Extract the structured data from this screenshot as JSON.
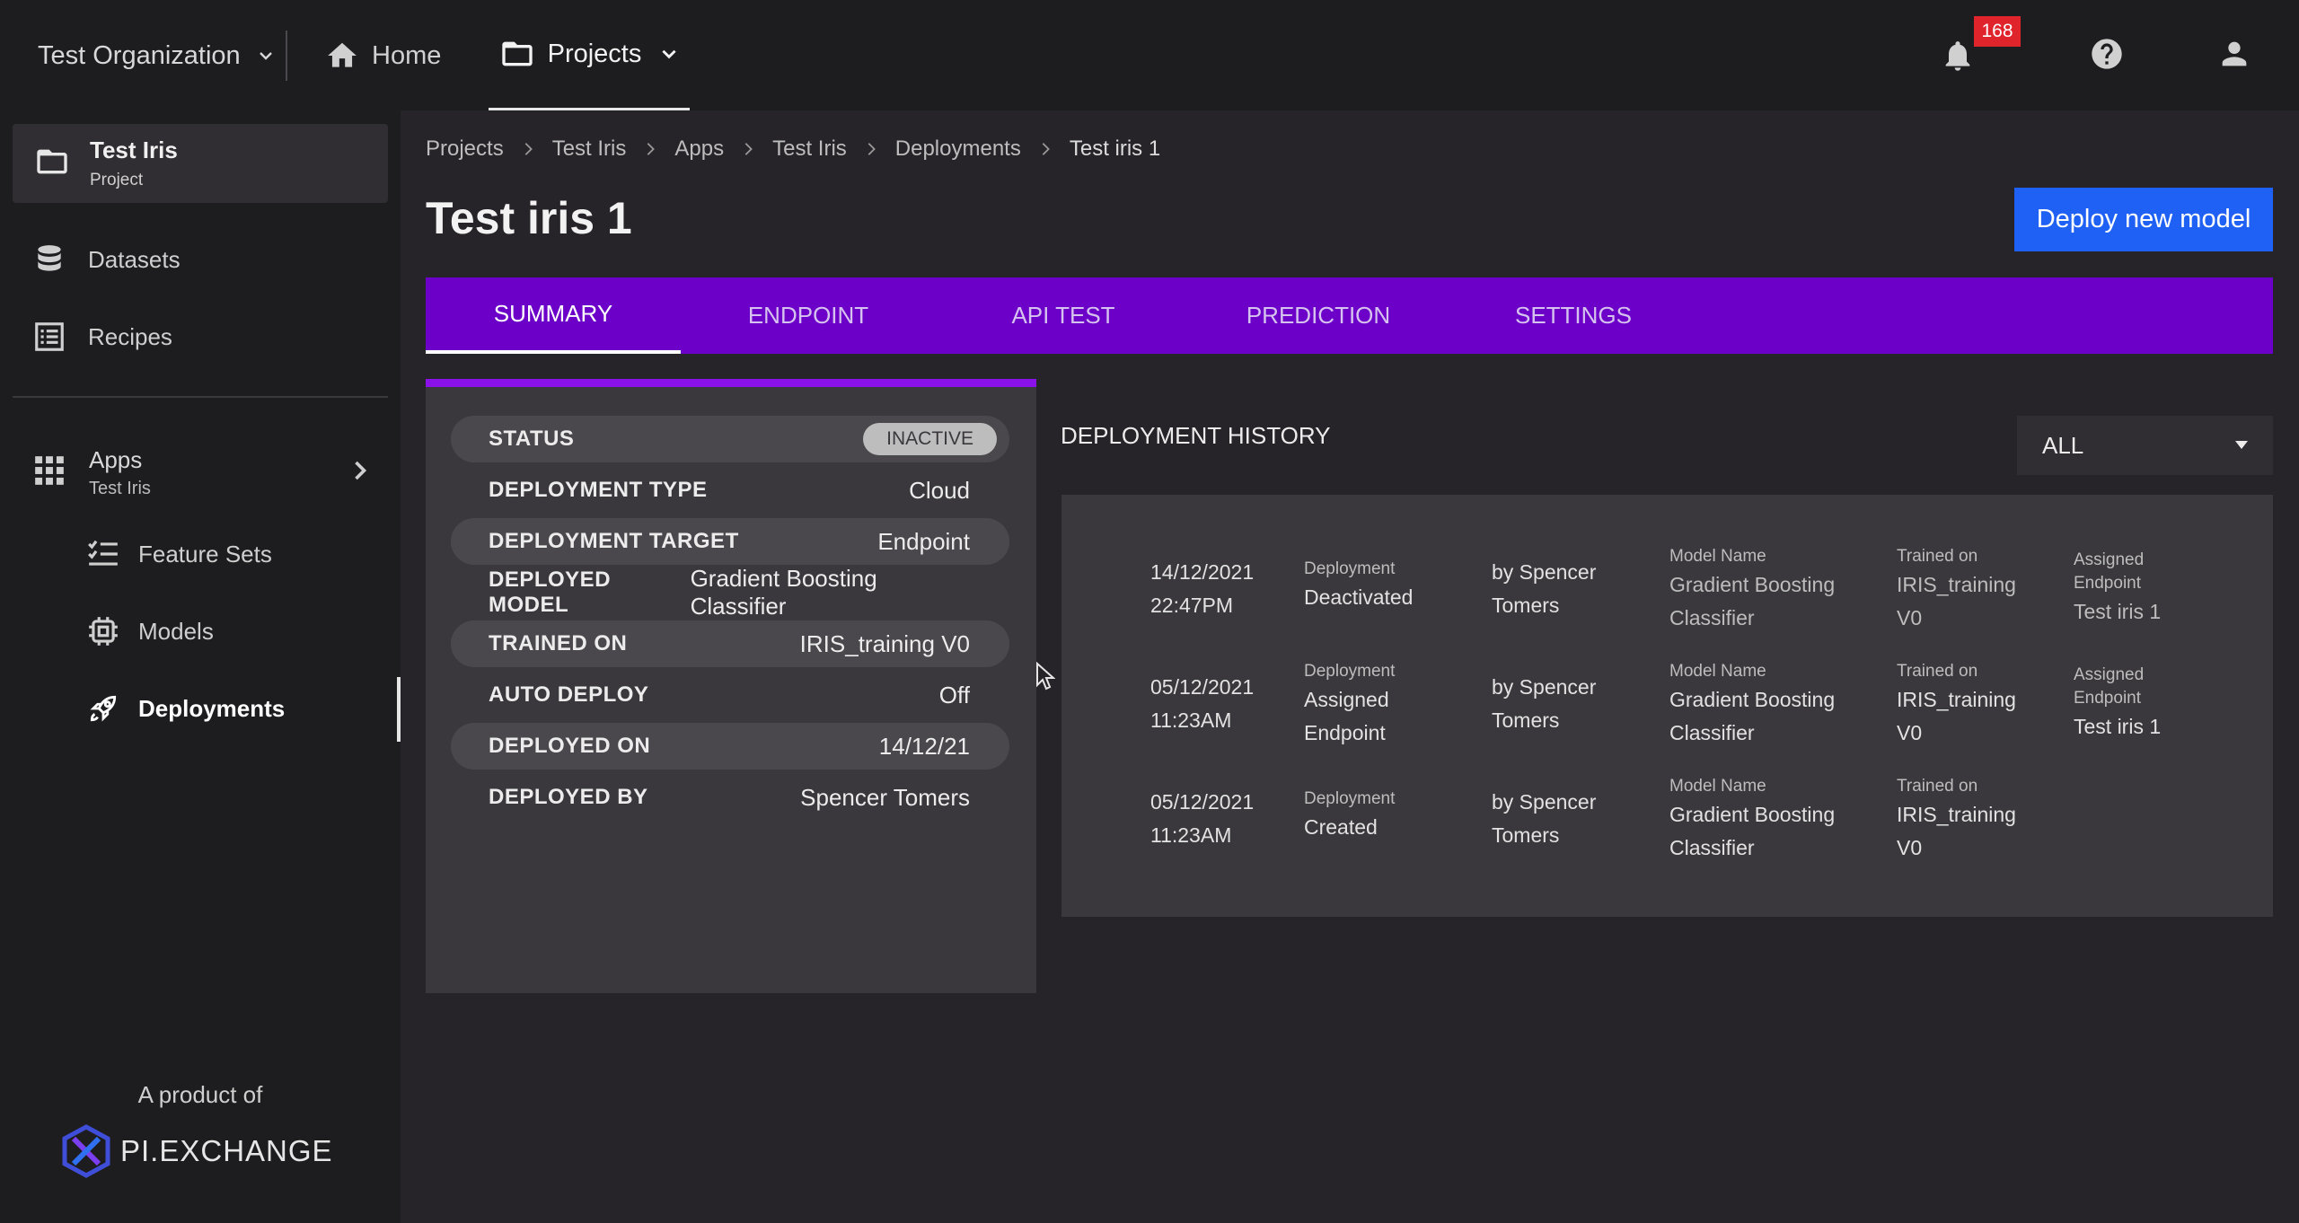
{
  "topbar": {
    "org": "Test Organization",
    "home": "Home",
    "projects": "Projects",
    "notification_count": "168"
  },
  "sidebar": {
    "project_title": "Test Iris",
    "project_sub": "Project",
    "datasets": "Datasets",
    "recipes": "Recipes",
    "apps_title": "Apps",
    "apps_sub": "Test Iris",
    "feature_sets": "Feature Sets",
    "models": "Models",
    "deployments": "Deployments",
    "product_of": "A product of",
    "logo_text": "PI.EXCHANGE"
  },
  "breadcrumbs": [
    "Projects",
    "Test Iris",
    "Apps",
    "Test Iris",
    "Deployments",
    "Test iris 1"
  ],
  "page": {
    "title": "Test iris 1",
    "deploy_button": "Deploy new model"
  },
  "tabs": [
    "SUMMARY",
    "ENDPOINT",
    "API TEST",
    "PREDICTION",
    "SETTINGS"
  ],
  "summary": {
    "status_label": "STATUS",
    "status_value": "INACTIVE",
    "rows": [
      {
        "key": "DEPLOYMENT TYPE",
        "value": "Cloud"
      },
      {
        "key": "DEPLOYMENT TARGET",
        "value": "Endpoint"
      },
      {
        "key": "DEPLOYED MODEL",
        "value": "Gradient Boosting Classifier"
      },
      {
        "key": "TRAINED ON",
        "value": "IRIS_training V0"
      },
      {
        "key": "AUTO DEPLOY",
        "value": "Off"
      },
      {
        "key": "DEPLOYED ON",
        "value": "14/12/21"
      },
      {
        "key": "DEPLOYED BY",
        "value": "Spencer Tomers"
      }
    ]
  },
  "history": {
    "title": "DEPLOYMENT HISTORY",
    "filter": "ALL",
    "rows": [
      {
        "date": "14/12/2021",
        "time": "22:47PM",
        "event_label": "Deployment",
        "event": "Deactivated",
        "by1": "by Spencer",
        "by2": "Tomers",
        "model_label": "Model Name",
        "model1": "Gradient Boosting",
        "model2": "Classifier",
        "trained_label": "Trained on",
        "trained1": "IRIS_training",
        "trained2": "V0",
        "endpoint_label1": "Assigned",
        "endpoint_label2": "Endpoint",
        "endpoint": "Test iris 1"
      },
      {
        "date": "05/12/2021",
        "time": "11:23AM",
        "event_label": "Deployment",
        "event1": "Assigned",
        "event2": "Endpoint",
        "by1": "by Spencer",
        "by2": "Tomers",
        "model_label": "Model Name",
        "model1": "Gradient Boosting",
        "model2": "Classifier",
        "trained_label": "Trained on",
        "trained1": "IRIS_training",
        "trained2": "V0",
        "endpoint_label1": "Assigned",
        "endpoint_label2": "Endpoint",
        "endpoint": "Test iris 1"
      },
      {
        "date": "05/12/2021",
        "time": "11:23AM",
        "event_label": "Deployment",
        "event": "Created",
        "by1": "by Spencer",
        "by2": "Tomers",
        "model_label": "Model Name",
        "model1": "Gradient Boosting",
        "model2": "Classifier",
        "trained_label": "Trained on",
        "trained1": "IRIS_training",
        "trained2": "V0"
      }
    ]
  },
  "colors": {
    "accent_purple": "#6c00c8",
    "primary_blue": "#1f60f5",
    "badge_red": "#e0242b"
  }
}
